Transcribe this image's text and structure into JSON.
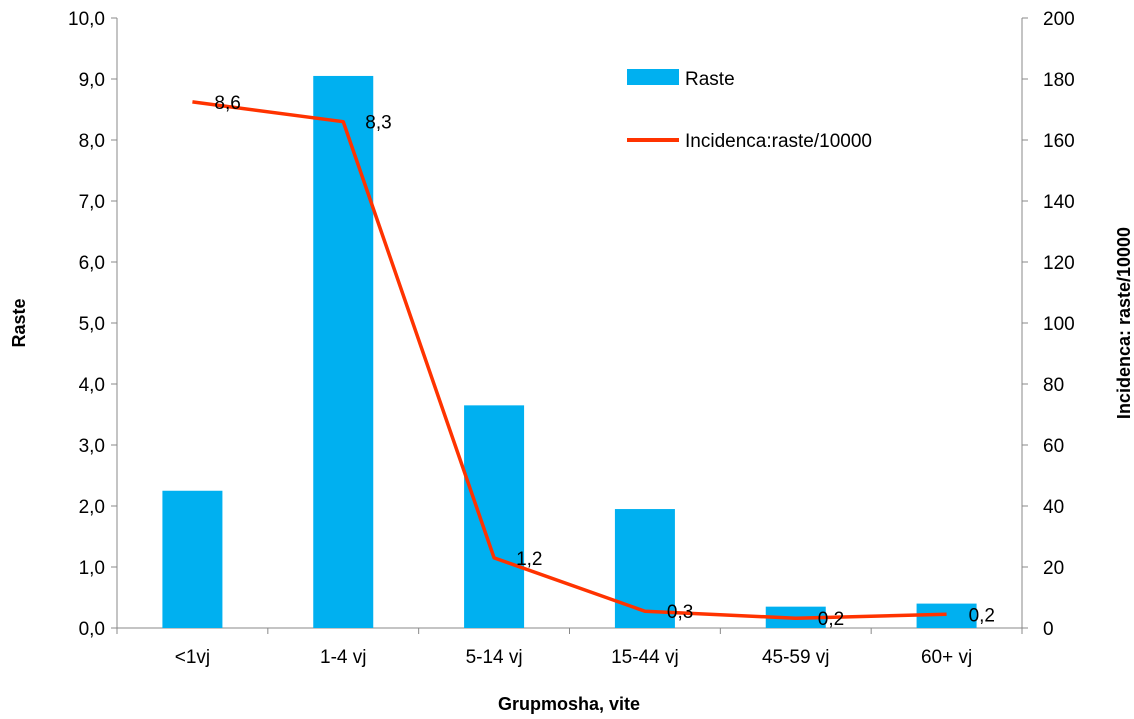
{
  "chart_data": {
    "type": "bar",
    "categories": [
      "<1vj",
      "1-4 vj",
      "5-14 vj",
      "15-44 vj",
      "45-59 vj",
      "60+ vj"
    ],
    "xlabel": "Grupmosha, vite",
    "ylabel": "Raste",
    "y2label": "Incidenca: raste/10000",
    "ylim": [
      0,
      10
    ],
    "y2lim": [
      0,
      200
    ],
    "yticks": [
      "0,0",
      "1,0",
      "2,0",
      "3,0",
      "4,0",
      "5,0",
      "6,0",
      "7,0",
      "8,0",
      "9,0",
      "10,0"
    ],
    "y2ticks": [
      "0",
      "20",
      "40",
      "60",
      "80",
      "100",
      "120",
      "140",
      "160",
      "180",
      "200"
    ],
    "legend_position": "top-right",
    "series": [
      {
        "name": "Raste",
        "type": "bar",
        "axis": "left",
        "color": "#00B0F0",
        "values": [
          2.25,
          9.05,
          3.65,
          1.95,
          0.35,
          0.4
        ]
      },
      {
        "name": "Incidenca:raste/10000",
        "type": "line",
        "axis": "right",
        "color": "#FF3300",
        "values": [
          172.5,
          166,
          23,
          5.5,
          3.2,
          4.5
        ],
        "data_labels": [
          "8,6",
          "8,3",
          "1,2",
          "0,3",
          "0,2",
          "0,2"
        ]
      }
    ]
  }
}
